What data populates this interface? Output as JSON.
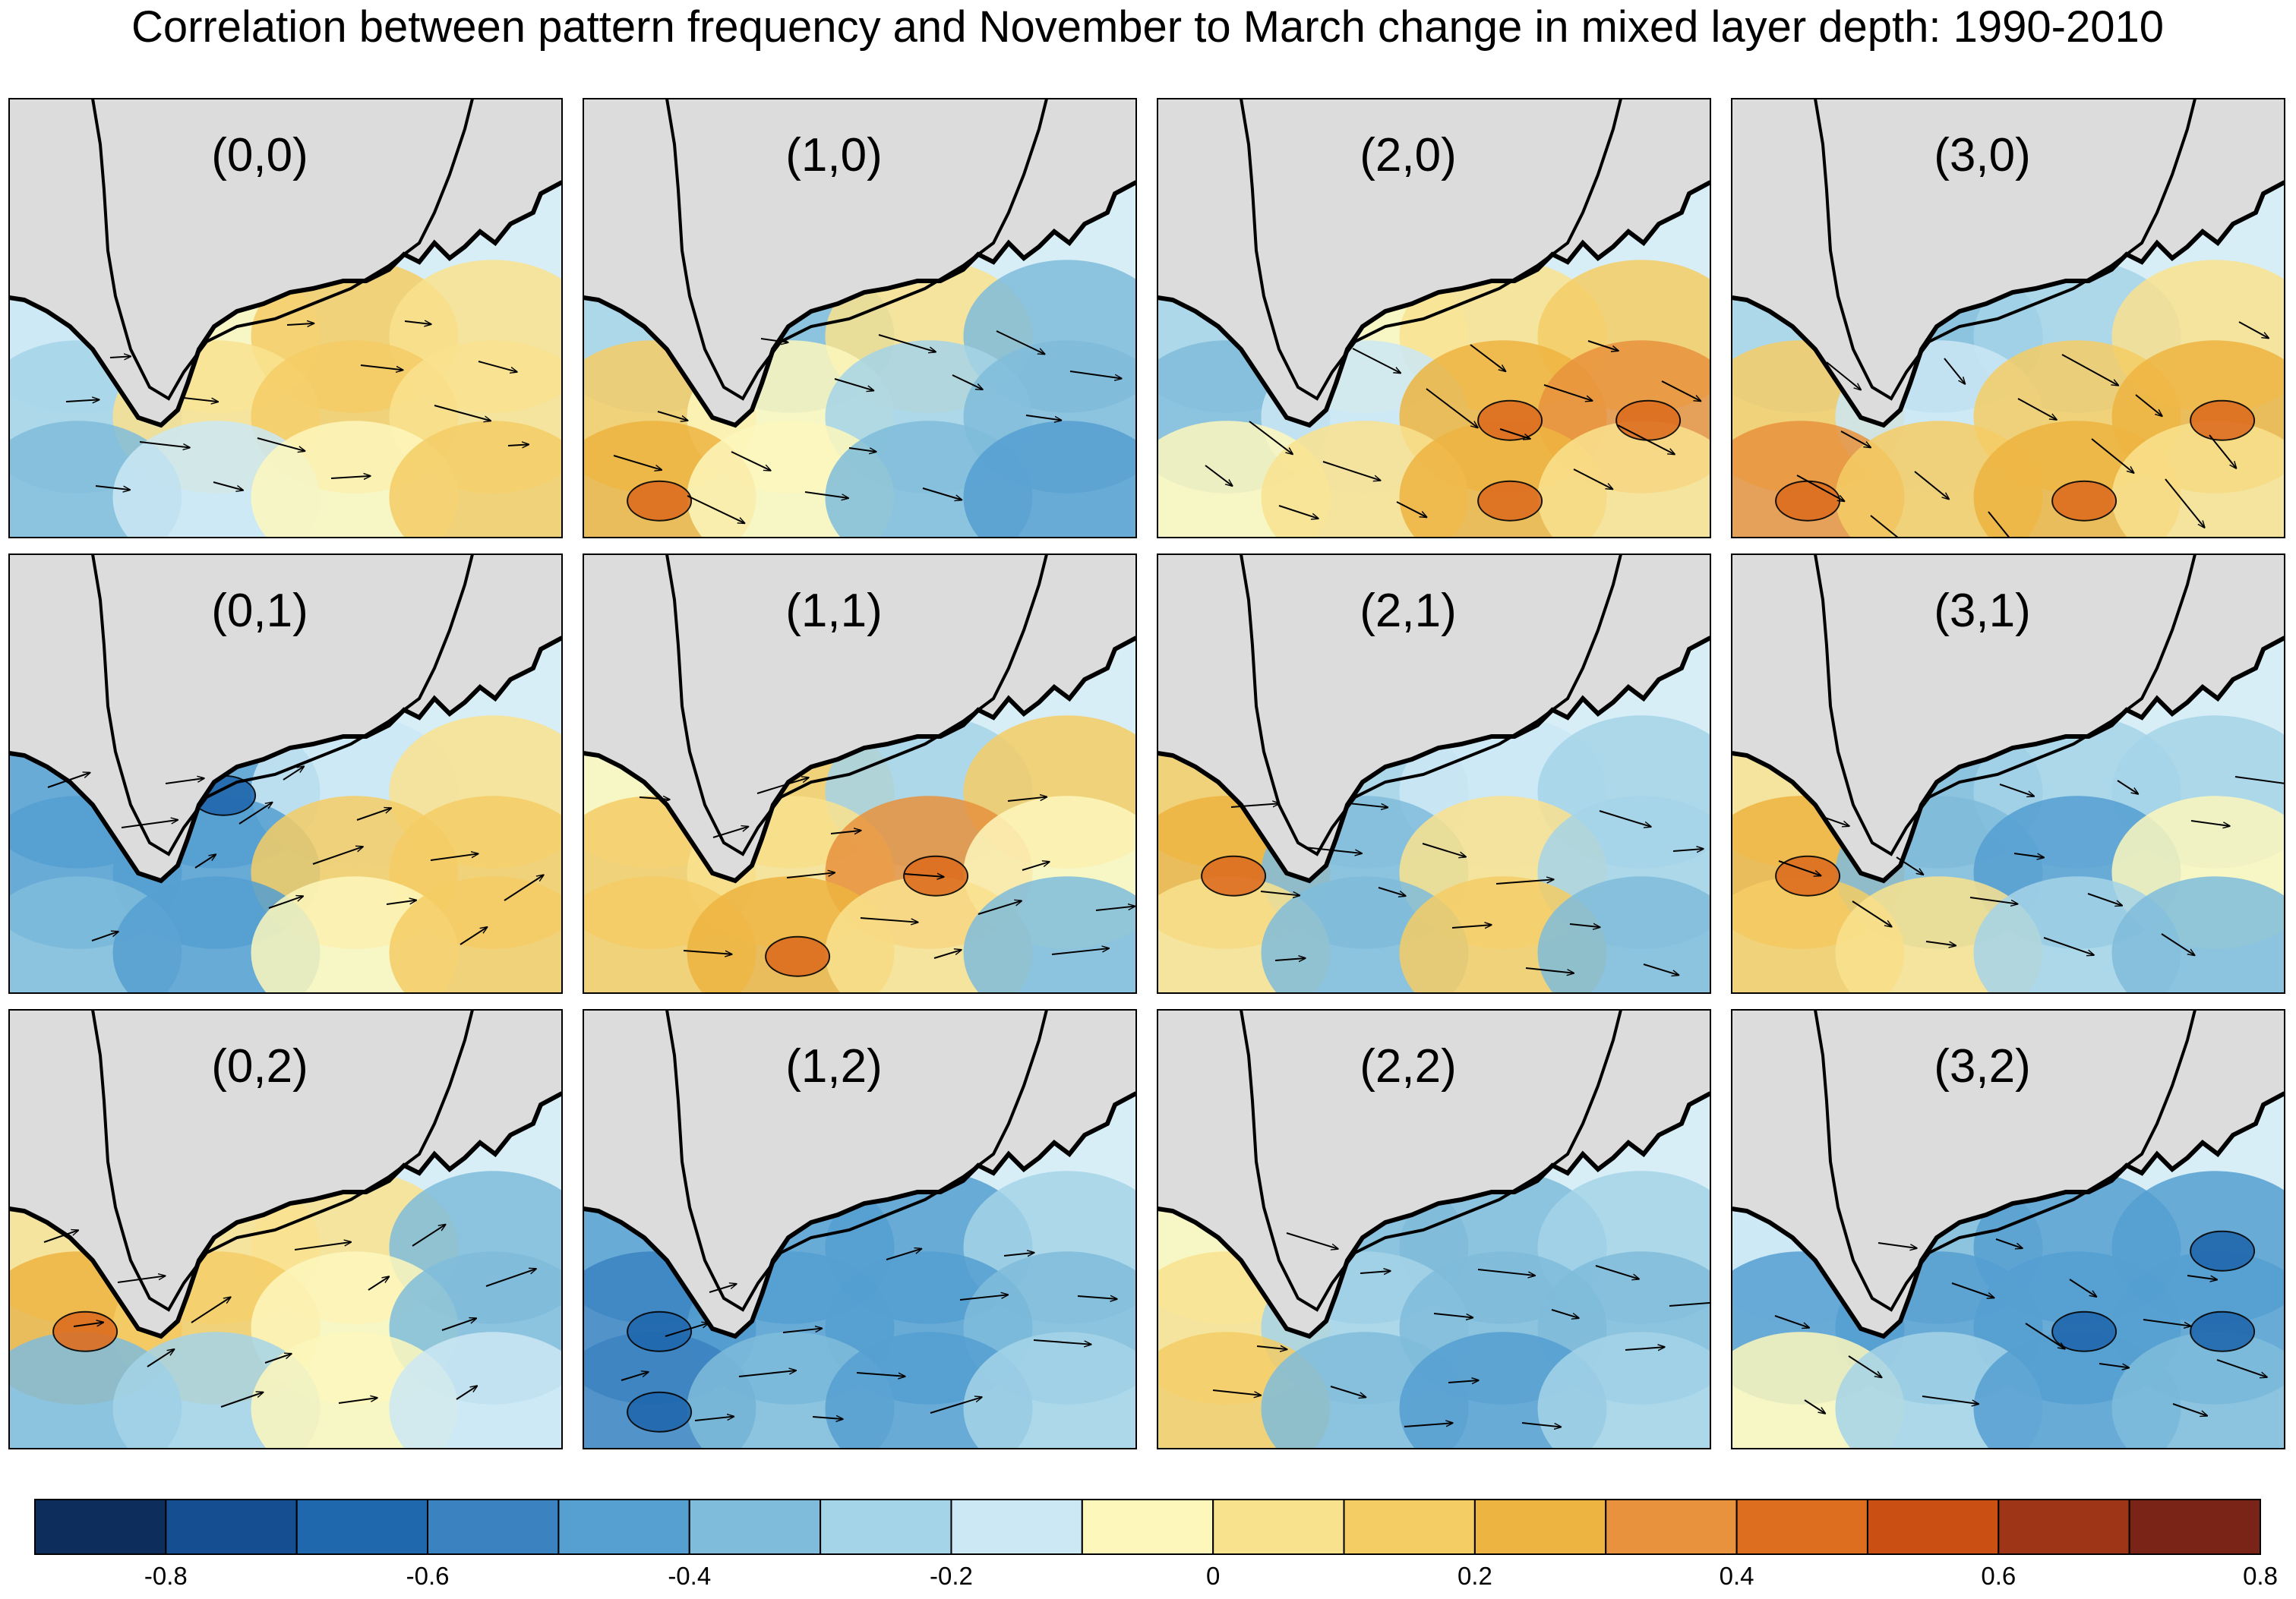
{
  "title": "Correlation between pattern frequency and November to March change in mixed layer depth: 1990-2010",
  "colors": {
    "land": "#dcdcdc",
    "coast": "#000000",
    "panel_border": "#000000",
    "negative_strong": "#4a8cc4",
    "negative_weak": "#a8d5e8",
    "positive_weak": "#f6e08a",
    "positive_strong": "#e48a2a"
  },
  "panels": [
    {
      "label": "(0,0)",
      "pattern": [
        0.0,
        0.1,
        0.3,
        0.2,
        -0.1,
        0.2,
        0.3,
        0.2,
        -0.2,
        0.0,
        0.1,
        0.3
      ]
    },
    {
      "label": "(1,0)",
      "pattern": [
        -0.1,
        -0.2,
        0.2,
        -0.2,
        0.3,
        0.1,
        -0.1,
        -0.2,
        0.4,
        0.1,
        -0.2,
        -0.3
      ]
    },
    {
      "label": "(2,0)",
      "pattern": [
        -0.1,
        0.1,
        0.2,
        0.3,
        -0.2,
        0.0,
        0.4,
        0.5,
        0.1,
        0.2,
        0.4,
        0.2
      ]
    },
    {
      "label": "(3,0)",
      "pattern": [
        -0.1,
        -0.2,
        -0.1,
        0.2,
        0.3,
        0.0,
        0.3,
        0.4,
        0.5,
        0.3,
        0.4,
        0.2
      ]
    },
    {
      "label": "(0,1)",
      "pattern": [
        -0.3,
        -0.4,
        0.0,
        0.2,
        -0.3,
        -0.3,
        0.3,
        0.3,
        -0.2,
        -0.3,
        0.1,
        0.3
      ]
    },
    {
      "label": "(1,1)",
      "pattern": [
        0.1,
        0.3,
        -0.1,
        0.3,
        0.3,
        0.2,
        0.5,
        0.1,
        0.3,
        0.4,
        0.2,
        -0.2
      ]
    },
    {
      "label": "(2,1)",
      "pattern": [
        0.3,
        -0.1,
        0.0,
        -0.1,
        0.4,
        -0.2,
        0.2,
        -0.1,
        0.2,
        -0.2,
        0.3,
        -0.2
      ]
    },
    {
      "label": "(3,1)",
      "pattern": [
        0.2,
        -0.2,
        -0.1,
        -0.1,
        0.4,
        -0.2,
        -0.3,
        0.1,
        0.3,
        0.2,
        -0.1,
        -0.2
      ]
    },
    {
      "label": "(0,2)",
      "pattern": [
        0.2,
        0.2,
        0.2,
        -0.2,
        0.4,
        0.3,
        0.1,
        -0.2,
        -0.2,
        -0.1,
        0.1,
        0.0
      ]
    },
    {
      "label": "(1,2)",
      "pattern": [
        -0.3,
        -0.3,
        -0.3,
        -0.1,
        -0.6,
        -0.3,
        -0.3,
        -0.2,
        -0.5,
        -0.2,
        -0.3,
        -0.1
      ]
    },
    {
      "label": "(2,2)",
      "pattern": [
        0.1,
        -0.2,
        -0.2,
        -0.1,
        0.2,
        -0.1,
        -0.2,
        -0.2,
        0.3,
        -0.2,
        -0.3,
        -0.1
      ]
    },
    {
      "label": "(3,2)",
      "pattern": [
        0.0,
        -0.2,
        -0.3,
        -0.4,
        -0.3,
        -0.3,
        -0.4,
        -0.4,
        0.1,
        -0.1,
        -0.3,
        -0.2
      ]
    }
  ],
  "colorbar": {
    "colors": [
      "#0d2e5c",
      "#164f91",
      "#2068ad",
      "#3b82c1",
      "#559fd1",
      "#7fbcdb",
      "#a4d4e8",
      "#cbe8f4",
      "#fdf7bc",
      "#f9e28e",
      "#f5cd65",
      "#edb441",
      "#e8923d",
      "#dd6e20",
      "#c94f12",
      "#9e3516",
      "#7a2317"
    ],
    "tick_labels": [
      "-0.8",
      "-0.6",
      "-0.4",
      "-0.2",
      "0",
      "0.2",
      "0.4",
      "0.6",
      "0.8"
    ]
  }
}
